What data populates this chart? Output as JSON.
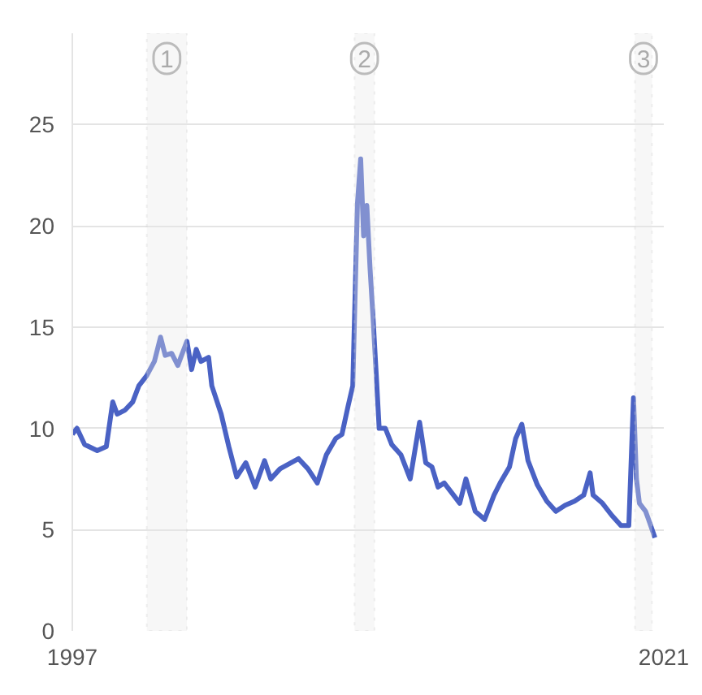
{
  "chart_data": {
    "type": "line",
    "x": [
      1997.0,
      1997.19,
      1997.5,
      1998.01,
      1998.38,
      1998.64,
      1998.82,
      1999.14,
      1999.45,
      1999.7,
      2000.02,
      2000.33,
      2000.58,
      2000.77,
      2001.03,
      2001.28,
      2001.65,
      2001.84,
      2002.03,
      2002.22,
      2002.53,
      2002.66,
      2003.04,
      2003.35,
      2003.67,
      2004.04,
      2004.42,
      2004.8,
      2005.05,
      2005.43,
      2006.18,
      2006.56,
      2006.94,
      2007.31,
      2007.69,
      2007.94,
      2008.19,
      2008.38,
      2008.57,
      2008.7,
      2008.82,
      2008.95,
      2009.08,
      2009.2,
      2009.33,
      2009.45,
      2009.7,
      2009.96,
      2010.33,
      2010.71,
      2011.09,
      2011.34,
      2011.59,
      2011.84,
      2012.09,
      2012.47,
      2012.72,
      2012.97,
      2013.35,
      2013.73,
      2014.11,
      2014.36,
      2014.74,
      2014.99,
      2015.24,
      2015.49,
      2015.87,
      2016.25,
      2016.62,
      2017.0,
      2017.38,
      2017.75,
      2018.01,
      2018.13,
      2018.51,
      2018.89,
      2019.26,
      2019.58,
      2019.77,
      2019.89,
      2020.01,
      2020.26,
      2020.38,
      2020.64
    ],
    "series": [
      {
        "color": "#4a62c4",
        "values": [
          9.7,
          10.0,
          9.2,
          8.9,
          9.1,
          11.3,
          10.7,
          10.9,
          11.3,
          12.1,
          12.6,
          13.3,
          14.5,
          13.6,
          13.7,
          13.1,
          14.3,
          12.9,
          13.9,
          13.3,
          13.5,
          12.1,
          10.7,
          9.1,
          7.6,
          8.3,
          7.1,
          8.4,
          7.5,
          8.0,
          8.5,
          8.0,
          7.3,
          8.7,
          9.5,
          9.7,
          11.1,
          12.1,
          21.1,
          23.3,
          19.5,
          21.0,
          17.9,
          15.5,
          12.7,
          10.0,
          10.0,
          9.2,
          8.7,
          7.5,
          10.3,
          8.3,
          8.1,
          7.1,
          7.3,
          6.7,
          6.3,
          7.5,
          5.9,
          5.5,
          6.7,
          7.3,
          8.1,
          9.5,
          10.2,
          8.4,
          7.2,
          6.4,
          5.9,
          6.2,
          6.4,
          6.7,
          7.8,
          6.7,
          6.3,
          5.7,
          5.2,
          5.2,
          11.5,
          7.5,
          6.3,
          5.9,
          5.5,
          4.6
        ]
      }
    ],
    "xlim": [
      1997,
      2021
    ],
    "xticks": [
      1997,
      2021
    ],
    "ylim": [
      0,
      29.5
    ],
    "yticks": [
      0,
      5,
      10,
      15,
      20,
      25
    ],
    "grid": "y",
    "line_style": "solid",
    "bands": [
      {
        "axis": "x",
        "from": 2000.02,
        "to": 2001.65,
        "label": "1",
        "color": "#e8e8e8"
      },
      {
        "axis": "x",
        "from": 2008.45,
        "to": 2009.26,
        "label": "2",
        "color": "#e8e8e8"
      },
      {
        "axis": "x",
        "from": 2019.83,
        "to": 2020.52,
        "label": "3",
        "color": "#e8e8e8"
      }
    ]
  }
}
